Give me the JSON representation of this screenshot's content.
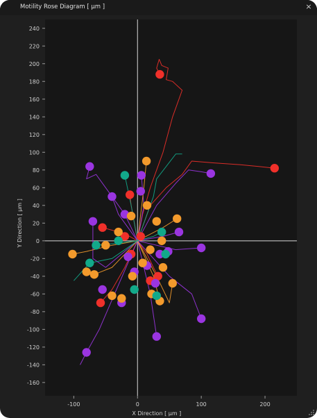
{
  "window": {
    "title": "Motility Rose Diagram [ µm ]",
    "close_glyph": "×",
    "close_icon": "close-icon",
    "grip_icon": "resize-grip-icon"
  },
  "colors": {
    "background": "#1f1f1f",
    "plot_background": "#161616",
    "axis": "#d9d9d9",
    "tick_text": "#d0d0d0",
    "purple": "#9a35e0",
    "orange": "#f39a2c",
    "red": "#f0302a",
    "teal": "#12a98a"
  },
  "chart_data": {
    "type": "scatter",
    "title": "",
    "xlabel": "X Direction [ µm ]",
    "ylabel": "Y Direction [ µm ]",
    "xlim": [
      -145,
      250
    ],
    "ylim": [
      -175,
      250
    ],
    "xticks": [
      -100,
      0,
      100,
      200
    ],
    "yticks": [
      -160,
      -140,
      -120,
      -100,
      -80,
      -60,
      -40,
      -20,
      0,
      20,
      40,
      60,
      80,
      100,
      120,
      140,
      160,
      180,
      200,
      220,
      240
    ],
    "grid": false,
    "zero_lines": true,
    "series": [
      {
        "color": "#f0302a",
        "endpoints": [
          [
            35,
            188
          ],
          [
            215,
            82
          ],
          [
            -12,
            52
          ],
          [
            -55,
            15
          ],
          [
            5,
            5
          ],
          [
            -20,
            5
          ],
          [
            -10,
            -15
          ],
          [
            32,
            -40
          ],
          [
            -58,
            -70
          ],
          [
            20,
            -45
          ]
        ],
        "tracks": [
          [
            [
              0,
              0
            ],
            [
              8,
              30
            ],
            [
              20,
              60
            ],
            [
              40,
              100
            ],
            [
              55,
              140
            ],
            [
              70,
              170
            ],
            [
              55,
              180
            ],
            [
              45,
              182
            ],
            [
              48,
              195
            ],
            [
              38,
              198
            ],
            [
              34,
              205
            ],
            [
              30,
              195
            ],
            [
              35,
              188
            ]
          ],
          [
            [
              0,
              0
            ],
            [
              20,
              40
            ],
            [
              45,
              60
            ],
            [
              70,
              75
            ],
            [
              85,
              90
            ],
            [
              120,
              88
            ],
            [
              160,
              86
            ],
            [
              190,
              84
            ],
            [
              215,
              82
            ]
          ],
          [
            [
              0,
              0
            ],
            [
              -5,
              20
            ],
            [
              -10,
              40
            ],
            [
              -12,
              52
            ]
          ],
          [
            [
              0,
              0
            ],
            [
              -20,
              8
            ],
            [
              -40,
              12
            ],
            [
              -55,
              15
            ]
          ],
          [
            [
              0,
              0
            ],
            [
              15,
              -15
            ],
            [
              25,
              -30
            ],
            [
              32,
              -40
            ]
          ],
          [
            [
              0,
              0
            ],
            [
              -20,
              -30
            ],
            [
              -40,
              -55
            ],
            [
              -58,
              -70
            ]
          ]
        ]
      },
      {
        "color": "#9a35e0",
        "endpoints": [
          [
            -75,
            84
          ],
          [
            115,
            76
          ],
          [
            6,
            74
          ],
          [
            -40,
            50
          ],
          [
            5,
            56
          ],
          [
            -70,
            22
          ],
          [
            -20,
            30
          ],
          [
            65,
            10
          ],
          [
            100,
            -8
          ],
          [
            -5,
            -35
          ],
          [
            35,
            -15
          ],
          [
            -55,
            -55
          ],
          [
            28,
            -48
          ],
          [
            100,
            -88
          ],
          [
            30,
            -108
          ],
          [
            -80,
            -126
          ],
          [
            -25,
            -70
          ],
          [
            15,
            -28
          ],
          [
            -15,
            -18
          ],
          [
            48,
            -12
          ]
        ],
        "tracks": [
          [
            [
              0,
              0
            ],
            [
              -20,
              30
            ],
            [
              -50,
              60
            ],
            [
              -65,
              75
            ],
            [
              -80,
              70
            ],
            [
              -75,
              84
            ]
          ],
          [
            [
              0,
              0
            ],
            [
              30,
              40
            ],
            [
              60,
              65
            ],
            [
              80,
              80
            ],
            [
              100,
              78
            ],
            [
              115,
              76
            ]
          ],
          [
            [
              0,
              0
            ],
            [
              10,
              40
            ],
            [
              6,
              74
            ]
          ],
          [
            [
              0,
              0
            ],
            [
              -30,
              30
            ],
            [
              -40,
              50
            ]
          ],
          [
            [
              0,
              0
            ],
            [
              40,
              5
            ],
            [
              65,
              10
            ]
          ],
          [
            [
              0,
              0
            ],
            [
              60,
              -10
            ],
            [
              100,
              -8
            ]
          ],
          [
            [
              0,
              0
            ],
            [
              50,
              -40
            ],
            [
              85,
              -60
            ],
            [
              100,
              -88
            ]
          ],
          [
            [
              0,
              0
            ],
            [
              20,
              -60
            ],
            [
              30,
              -108
            ]
          ],
          [
            [
              0,
              0
            ],
            [
              -30,
              -50
            ],
            [
              -60,
              -100
            ],
            [
              -80,
              -126
            ],
            [
              -90,
              -140
            ]
          ],
          [
            [
              0,
              0
            ],
            [
              -50,
              -30
            ],
            [
              -70,
              -20
            ],
            [
              -70,
              22
            ]
          ]
        ]
      },
      {
        "color": "#f39a2c",
        "endpoints": [
          [
            14,
            90
          ],
          [
            15,
            40
          ],
          [
            -10,
            28
          ],
          [
            30,
            22
          ],
          [
            -30,
            10
          ],
          [
            62,
            25
          ],
          [
            -50,
            -5
          ],
          [
            -102,
            -15
          ],
          [
            -80,
            -35
          ],
          [
            -68,
            -38
          ],
          [
            40,
            -30
          ],
          [
            -40,
            -62
          ],
          [
            -25,
            -65
          ],
          [
            22,
            -60
          ],
          [
            35,
            -68
          ],
          [
            55,
            -48
          ],
          [
            8,
            -25
          ],
          [
            -8,
            -40
          ],
          [
            20,
            -10
          ],
          [
            38,
            0
          ]
        ],
        "tracks": [
          [
            [
              0,
              0
            ],
            [
              5,
              30
            ],
            [
              10,
              60
            ],
            [
              14,
              90
            ]
          ],
          [
            [
              0,
              0
            ],
            [
              -40,
              -5
            ],
            [
              -80,
              -12
            ],
            [
              -102,
              -15
            ]
          ],
          [
            [
              0,
              0
            ],
            [
              -40,
              -30
            ],
            [
              -68,
              -38
            ]
          ],
          [
            [
              0,
              0
            ],
            [
              30,
              -40
            ],
            [
              50,
              -70
            ],
            [
              55,
              -48
            ]
          ],
          [
            [
              0,
              0
            ],
            [
              25,
              -40
            ],
            [
              35,
              -68
            ]
          ],
          [
            [
              0,
              0
            ],
            [
              40,
              15
            ],
            [
              62,
              25
            ]
          ]
        ]
      },
      {
        "color": "#12a98a",
        "endpoints": [
          [
            -20,
            74
          ],
          [
            -65,
            -5
          ],
          [
            -75,
            -25
          ],
          [
            38,
            10
          ],
          [
            44,
            -15
          ],
          [
            -5,
            -55
          ],
          [
            30,
            -62
          ],
          [
            -30,
            0
          ]
        ],
        "tracks": [
          [
            [
              0,
              0
            ],
            [
              -10,
              40
            ],
            [
              -20,
              74
            ]
          ],
          [
            [
              0,
              0
            ],
            [
              25,
              50
            ],
            [
              30,
              70
            ],
            [
              60,
              98
            ],
            [
              70,
              98
            ]
          ],
          [
            [
              0,
              0
            ],
            [
              -40,
              -20
            ],
            [
              -75,
              -25
            ],
            [
              -100,
              -45
            ]
          ],
          [
            [
              0,
              0
            ],
            [
              -35,
              -3
            ],
            [
              -65,
              -5
            ]
          ],
          [
            [
              0,
              0
            ],
            [
              25,
              5
            ],
            [
              38,
              10
            ]
          ]
        ]
      }
    ]
  }
}
